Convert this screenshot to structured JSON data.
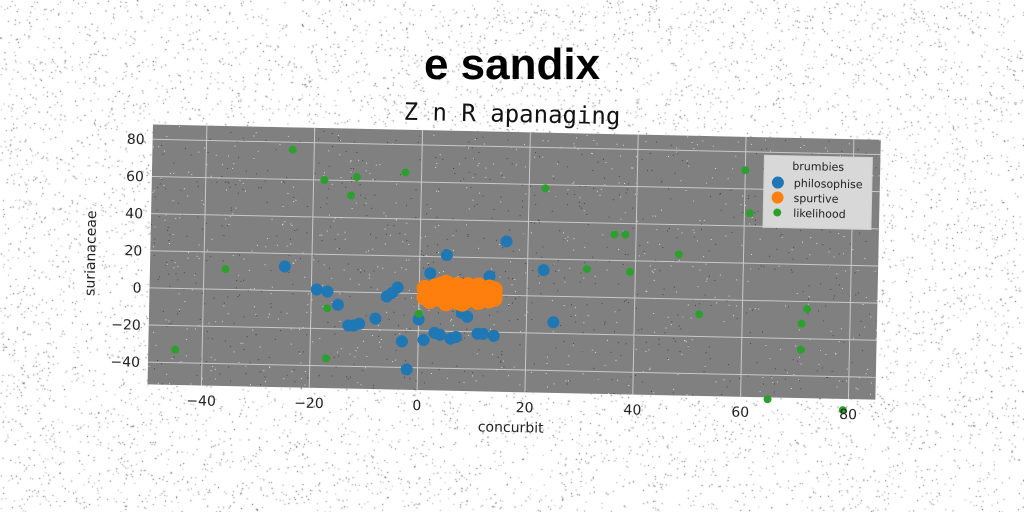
{
  "suptitle": "e sandix",
  "chart_data": {
    "type": "scatter",
    "title": "Z n R apanaging",
    "xlabel": "concurbit",
    "ylabel": "surianaceae",
    "xlim": [
      -50,
      85
    ],
    "ylim": [
      -52,
      88
    ],
    "xticks": [
      -40,
      -20,
      0,
      20,
      40,
      60,
      80
    ],
    "yticks": [
      -40,
      -20,
      0,
      20,
      40,
      60,
      80
    ],
    "grid": true,
    "legend_title": "brumbies",
    "legend_position": "top-right",
    "series": [
      {
        "name": "philosophise",
        "color": "#1f77b4",
        "marker_size": 6,
        "points": [
          [
            -25,
            13
          ],
          [
            -19,
            1
          ],
          [
            -17,
            0
          ],
          [
            -15,
            -7
          ],
          [
            -13,
            -18
          ],
          [
            -12,
            -18
          ],
          [
            -11,
            -17
          ],
          [
            -8,
            -14
          ],
          [
            -6,
            -2
          ],
          [
            -5,
            0
          ],
          [
            -4,
            3
          ],
          [
            -3,
            -26
          ],
          [
            -2,
            -41
          ],
          [
            0,
            -14
          ],
          [
            1,
            -25
          ],
          [
            2,
            11
          ],
          [
            3,
            -21
          ],
          [
            4,
            -22
          ],
          [
            5,
            21
          ],
          [
            6,
            -24
          ],
          [
            7,
            -23
          ],
          [
            8,
            -10
          ],
          [
            9,
            -12
          ],
          [
            11,
            -21
          ],
          [
            12,
            -21
          ],
          [
            13,
            10
          ],
          [
            14,
            -22
          ],
          [
            16,
            29
          ],
          [
            23,
            14
          ],
          [
            25,
            -14
          ]
        ]
      },
      {
        "name": "spurtive",
        "color": "#ff7f0e",
        "marker_size": 8,
        "points": [
          [
            1,
            -2
          ],
          [
            1,
            3
          ],
          [
            2,
            1
          ],
          [
            2,
            -4
          ],
          [
            3,
            4
          ],
          [
            3,
            -1
          ],
          [
            3,
            2
          ],
          [
            4,
            -3
          ],
          [
            4,
            5
          ],
          [
            4,
            0
          ],
          [
            5,
            2
          ],
          [
            5,
            -5
          ],
          [
            5,
            6
          ],
          [
            6,
            -2
          ],
          [
            6,
            3
          ],
          [
            6,
            0
          ],
          [
            7,
            5
          ],
          [
            7,
            -4
          ],
          [
            7,
            1
          ],
          [
            8,
            -1
          ],
          [
            8,
            3
          ],
          [
            8,
            -5
          ],
          [
            9,
            2
          ],
          [
            9,
            5
          ],
          [
            9,
            -3
          ],
          [
            10,
            0
          ],
          [
            10,
            4
          ],
          [
            10,
            -2
          ],
          [
            11,
            1
          ],
          [
            11,
            -4
          ],
          [
            11,
            5
          ],
          [
            12,
            -1
          ],
          [
            12,
            3
          ],
          [
            12,
            0
          ],
          [
            13,
            2
          ],
          [
            13,
            -3
          ],
          [
            13,
            4
          ],
          [
            14,
            0
          ],
          [
            14,
            -2
          ],
          [
            14,
            3
          ]
        ]
      },
      {
        "name": "likelihood",
        "color": "#2ca02c",
        "marker_size": 4,
        "points": [
          [
            -45,
            -33
          ],
          [
            -36,
            11
          ],
          [
            -24,
            76
          ],
          [
            -18,
            60
          ],
          [
            -17,
            -36
          ],
          [
            -17,
            -9
          ],
          [
            -13,
            52
          ],
          [
            -12,
            62
          ],
          [
            -3,
            65
          ],
          [
            0,
            -11
          ],
          [
            23,
            58
          ],
          [
            31,
            15
          ],
          [
            36,
            34
          ],
          [
            38,
            34
          ],
          [
            39,
            14
          ],
          [
            48,
            24
          ],
          [
            52,
            -8
          ],
          [
            60,
            70
          ],
          [
            61,
            47
          ],
          [
            65,
            -53
          ],
          [
            71,
            -26
          ],
          [
            71,
            -12
          ],
          [
            72,
            -4
          ],
          [
            79,
            -58
          ]
        ]
      }
    ]
  }
}
